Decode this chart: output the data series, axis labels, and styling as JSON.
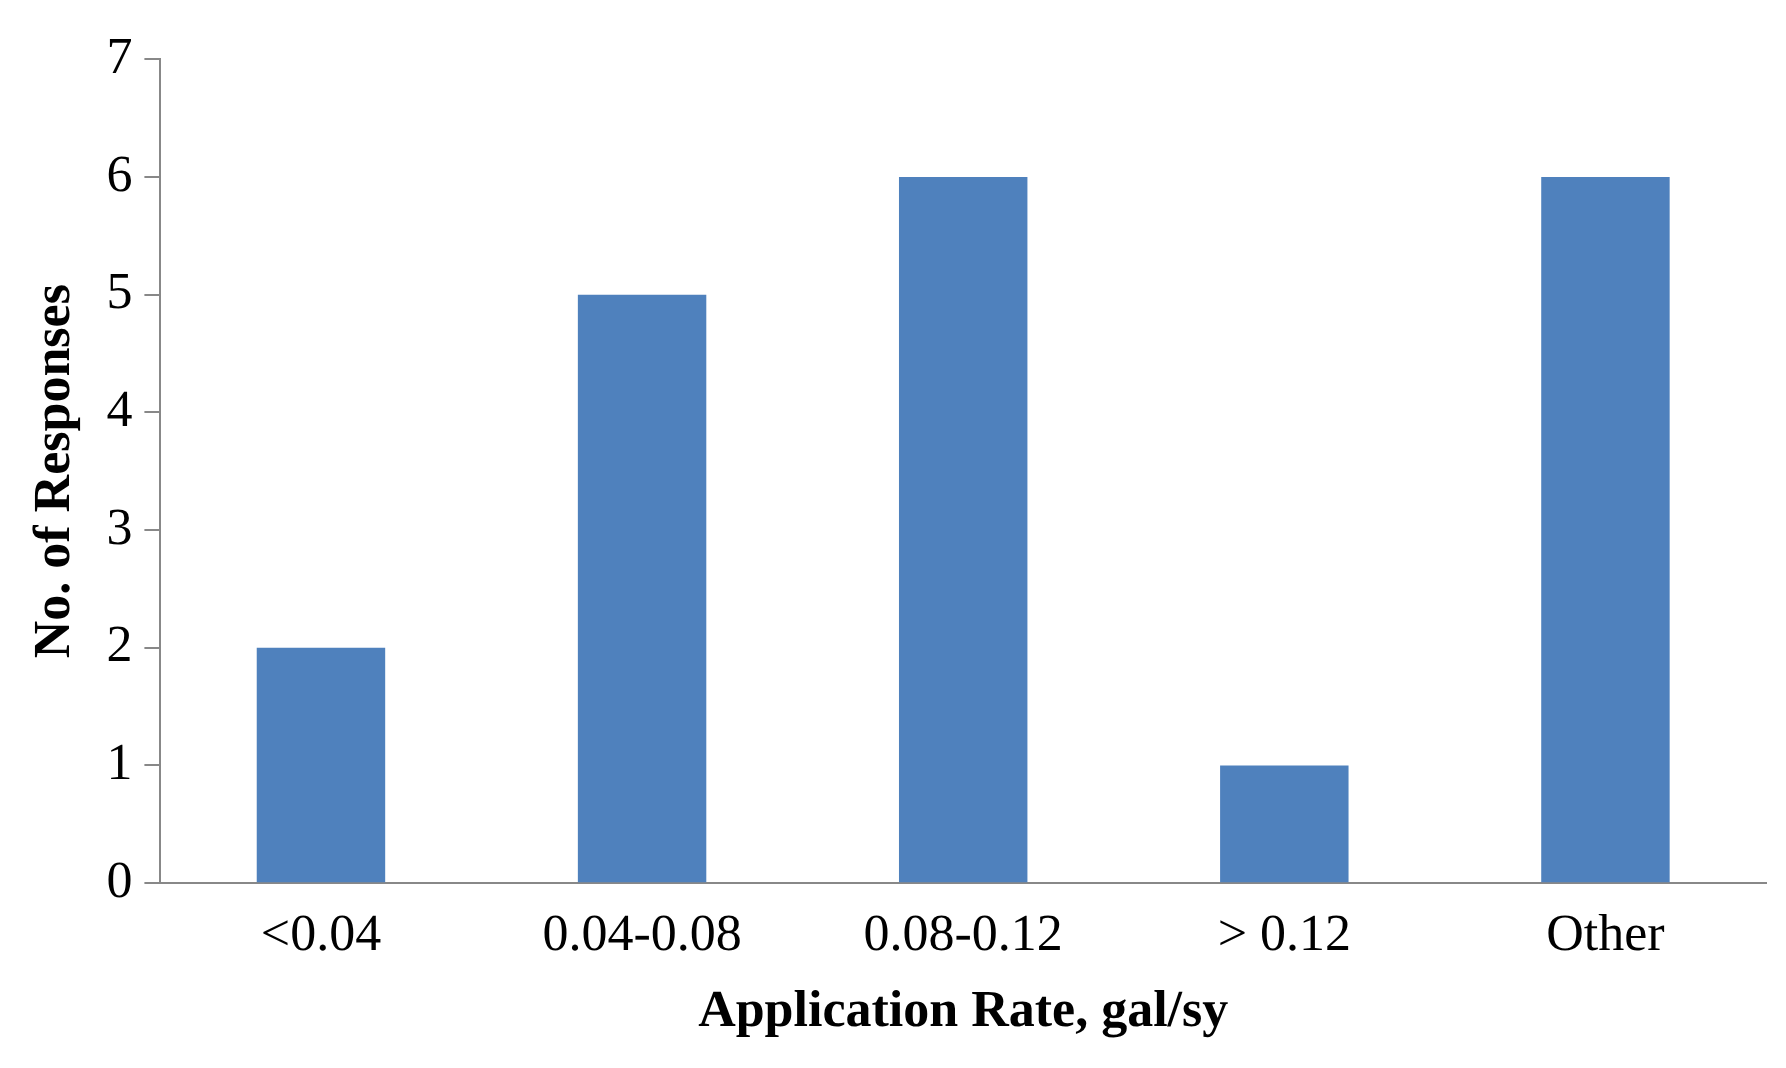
{
  "chart_data": {
    "type": "bar",
    "xlabel": "Application Rate, gal/sy",
    "ylabel": "No. of Responses",
    "categories": [
      "<0.04",
      "0.04-0.08",
      "0.08-0.12",
      "> 0.12",
      "Other"
    ],
    "values": [
      2,
      5,
      6,
      1,
      6
    ],
    "color": "#4f81bd",
    "ylim": [
      0,
      7
    ],
    "yticks": [
      0,
      1,
      2,
      3,
      4,
      5,
      6,
      7
    ],
    "grid": false,
    "legend": false
  }
}
